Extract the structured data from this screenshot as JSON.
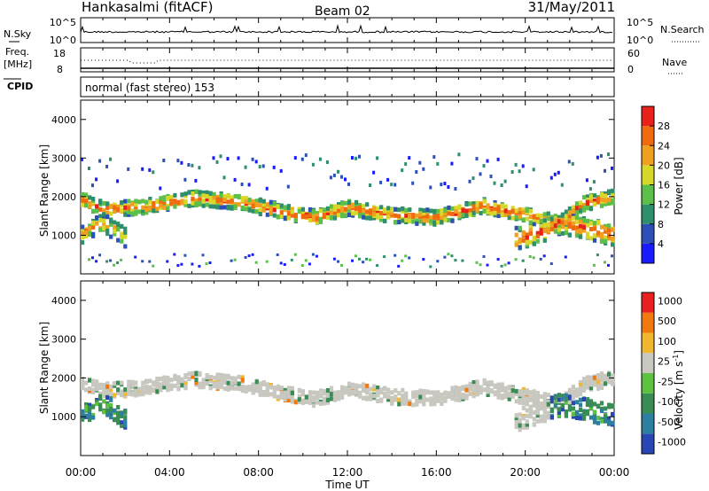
{
  "header": {
    "title": "Hankasalmi (fitACF)",
    "beam": "Beam 02",
    "date": "31/May/2011"
  },
  "top_panels": {
    "nsky_label": "N.Sky",
    "nsearch_label": "N.Search",
    "nsky_ticks": [
      "10^5",
      "10^0"
    ],
    "freq_label_1": "Freq.",
    "freq_label_2": "[MHz]",
    "freq_ticks": [
      "18",
      "8"
    ],
    "nave_label": "Nave",
    "nave_ticks": [
      "60",
      "0"
    ],
    "cpid_label": "CPID",
    "cpid_text": "normal (fast stereo) 153"
  },
  "x_axis": {
    "label": "Time UT",
    "ticks": [
      "00:00",
      "04:00",
      "08:00",
      "12:00",
      "16:00",
      "20:00",
      "00:00"
    ]
  },
  "chart_data": [
    {
      "type": "heatmap",
      "quantity": "power",
      "x_range_hours": [
        0,
        24
      ],
      "ylabel": "Slant Range [km]",
      "ylim": [
        0,
        4500
      ],
      "yticks": [
        1000,
        2000,
        3000,
        4000
      ],
      "colorbar": {
        "label": "Power [dB]",
        "ticks": [
          "4",
          "8",
          "12",
          "16",
          "20",
          "24",
          "28"
        ],
        "colors": [
          "#1a1aff",
          "#2e4fb8",
          "#2f8f6c",
          "#5cbf4a",
          "#d8d82a",
          "#f0a020",
          "#f06a10",
          "#e8221a"
        ]
      },
      "bands": [
        {
          "t": [
            0,
            1,
            3,
            5,
            7,
            9,
            10.5,
            12,
            14,
            16,
            18,
            20,
            21.5,
            22.5,
            24
          ],
          "range": [
            1900,
            1650,
            1750,
            1950,
            1850,
            1600,
            1450,
            1700,
            1500,
            1450,
            1750,
            1500,
            1300,
            1800,
            2000
          ],
          "spread": 170,
          "level": 0.9
        },
        {
          "t": [
            0,
            0.5,
            1,
            1.5,
            2
          ],
          "range": [
            1000,
            1200,
            1300,
            1100,
            900
          ],
          "spread": 220,
          "level": 0.8
        },
        {
          "t": [
            19.5,
            20.5,
            21.5,
            22.5,
            23.5,
            24
          ],
          "range": [
            900,
            1050,
            1300,
            1200,
            1050,
            1000
          ],
          "spread": 250,
          "level": 0.95
        }
      ]
    },
    {
      "type": "heatmap",
      "quantity": "velocity",
      "x_range_hours": [
        0,
        24
      ],
      "ylabel": "Slant Range [km]",
      "ylim": [
        0,
        4500
      ],
      "yticks": [
        1000,
        2000,
        3000,
        4000
      ],
      "colorbar": {
        "label": "Velocity [m s^-1]",
        "label_unit_prefix": "Velocity [m s",
        "label_exp": "-1",
        "label_suffix": "]",
        "ticks": [
          "1000",
          "500",
          "100",
          "25",
          "-25",
          "-100",
          "-500",
          "-1000"
        ],
        "colors": [
          "#2846b4",
          "#2c7fa0",
          "#3a8c55",
          "#5dc040",
          "#c8c8c0",
          "#f0b830",
          "#f07a10",
          "#e82020"
        ]
      }
    }
  ]
}
